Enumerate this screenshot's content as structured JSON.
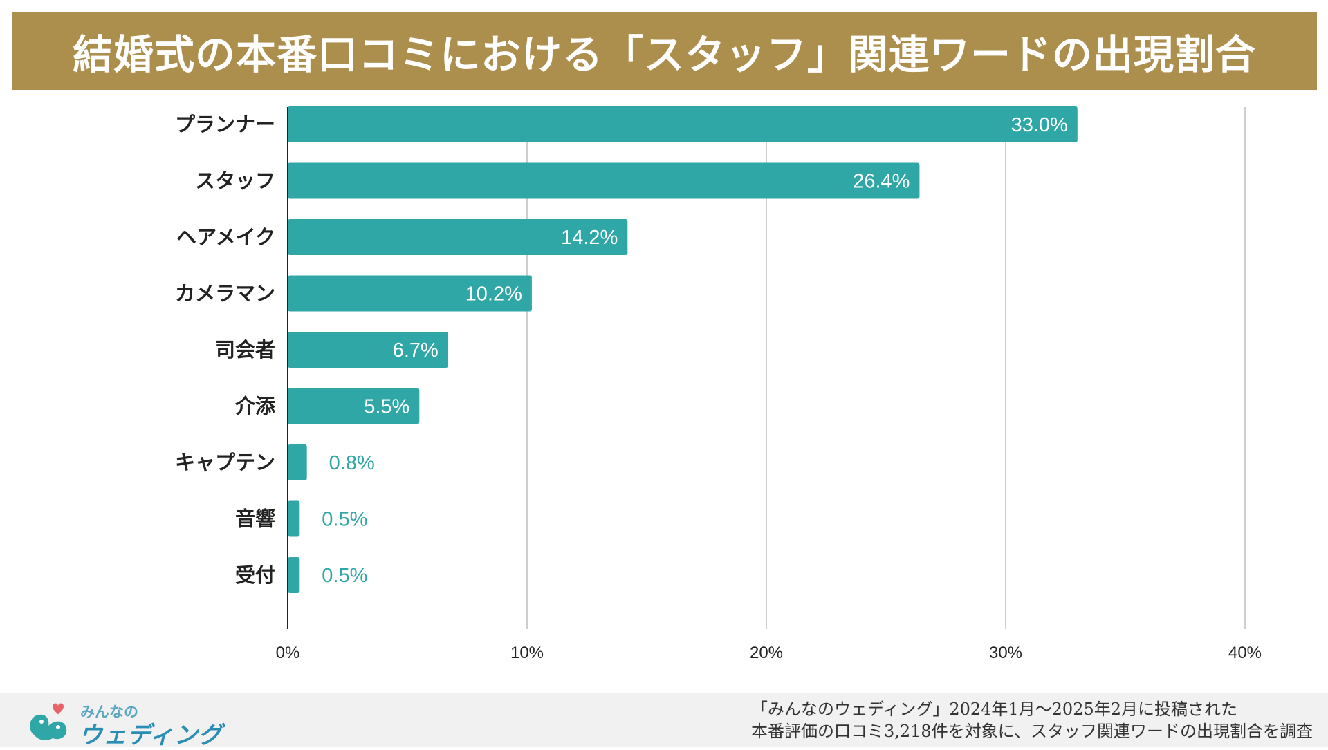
{
  "title": "結婚式の本番口コミにおける「スタッフ」関連ワードの出現割合",
  "colors": {
    "banner": "#ad8f4d",
    "bar": "#2fa7a6",
    "grid": "#cfcfcf",
    "axis": "#222222",
    "label_outside": "#2fa7a6",
    "label_inside": "#ffffff"
  },
  "chart_data": {
    "type": "bar",
    "orientation": "horizontal",
    "categories": [
      "プランナー",
      "スタッフ",
      "ヘアメイク",
      "カメラマン",
      "司会者",
      "介添",
      "キャプテン",
      "音響",
      "受付"
    ],
    "values": [
      33.0,
      26.4,
      14.2,
      10.2,
      6.7,
      5.5,
      0.8,
      0.5,
      0.5
    ],
    "data_labels": [
      "33.0%",
      "26.4%",
      "14.2%",
      "10.2%",
      "6.7%",
      "5.5%",
      "0.8%",
      "0.5%",
      "0.5%"
    ],
    "xlim": [
      0,
      40
    ],
    "xticks": [
      0,
      10,
      20,
      30,
      40
    ],
    "xtick_labels": [
      "0%",
      "10%",
      "20%",
      "30%",
      "40%"
    ],
    "grid": true,
    "legend": "none"
  },
  "footer": {
    "logo_small": "みんなの",
    "logo_main": "ウェディング",
    "logo_icon": "bird-heart-logo-icon",
    "source_line1": "「みんなのウェディング」2024年1月〜2025年2月に投稿された",
    "source_line2": "本番評価の口コミ3,218件を対象に、スタッフ関連ワードの出現割合を調査"
  }
}
